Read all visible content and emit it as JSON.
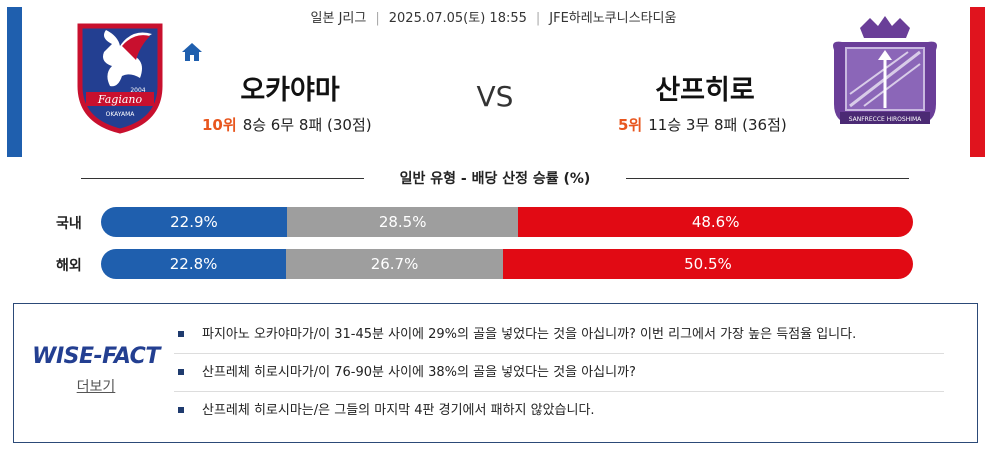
{
  "match": {
    "league": "일본 J리그",
    "datetime": "2025.07.05(토) 18:55",
    "venue": "JFE하레노쿠니스타디움",
    "vs_text": "VS"
  },
  "home_team": {
    "name": "오카야마",
    "rank": "10위",
    "record": "8승 6무 8패 (30점)",
    "logo_text": "Fagiano",
    "logo_subtext": "OKAYAMA",
    "logo_year": "2004",
    "color": "#1f5fae"
  },
  "away_team": {
    "name": "산프히로",
    "rank": "5위",
    "record": "11승 3무 8패 (36점)",
    "logo_text": "SANFRECCE HIROSHIMA",
    "color": "#e0141e"
  },
  "odds_section": {
    "title": "일반 유형 - 배당 산정 승률 (%)",
    "rows": [
      {
        "label": "국내",
        "win": "22.9%",
        "draw": "28.5%",
        "loss": "48.6%",
        "win_v": 22.9,
        "draw_v": 28.5,
        "loss_v": 48.6
      },
      {
        "label": "해외",
        "win": "22.8%",
        "draw": "26.7%",
        "loss": "50.5%",
        "win_v": 22.8,
        "draw_v": 26.7,
        "loss_v": 50.5
      }
    ]
  },
  "wise_fact": {
    "brand": "WISE-FACT",
    "more_label": "더보기",
    "items": [
      "파지아노 오카야마가/이 31-45분 사이에 29%의 골을 넣었다는 것을 아십니까? 이번 리그에서 가장 높은 득점율 입니다.",
      "산프레체 히로시마가/이 76-90분 사이에 38%의 골을 넣었다는 것을 아십니까?",
      "산프레체 히로시마는/은 그들의 마지막 4판 경기에서 패하지 않았습니다."
    ]
  },
  "icons": {
    "home": "home-icon"
  },
  "colors": {
    "win": "#1f5fae",
    "draw": "#9e9e9e",
    "loss": "#e10a14",
    "rank": "#e8561e"
  }
}
